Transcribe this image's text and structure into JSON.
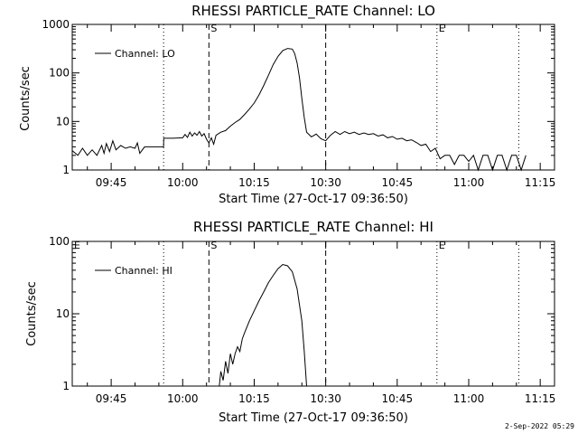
{
  "footer": "2-Sep-2022 05:29",
  "chart_data": [
    {
      "type": "line",
      "title": "RHESSI PARTICLE_RATE Channel: LO",
      "xlabel": "Start Time (27-Oct-17 09:36:50)",
      "ylabel": "Counts/sec",
      "y_scale": "log",
      "ylim": [
        1,
        1000
      ],
      "y_ticks": [
        "1",
        "10",
        "100",
        "1000"
      ],
      "xlim": [
        "09:36:50",
        "11:18:00"
      ],
      "x_ticks": [
        "09:45",
        "10:00",
        "10:15",
        "10:30",
        "10:45",
        "11:00",
        "11:15"
      ],
      "legend": {
        "position": "top-left",
        "entries": [
          "Channel: LO"
        ]
      },
      "markers": [
        {
          "time": "09:56:00",
          "style": "dotted",
          "label": ""
        },
        {
          "time": "10:05:30",
          "style": "dashed",
          "label": "S"
        },
        {
          "time": "10:30:00",
          "style": "dashed",
          "label": ""
        },
        {
          "time": "10:53:20",
          "style": "dotted",
          "label": "E"
        },
        {
          "time": "11:10:30",
          "style": "dotted",
          "label": ""
        }
      ],
      "series": [
        {
          "name": "Channel: LO",
          "points": [
            [
              "09:36:50",
              2.5
            ],
            [
              "09:38:00",
              2.0
            ],
            [
              "09:39:00",
              2.8
            ],
            [
              "09:40:00",
              2.0
            ],
            [
              "09:41:00",
              2.6
            ],
            [
              "09:42:00",
              2.0
            ],
            [
              "09:43:00",
              3.2
            ],
            [
              "09:43:30",
              2.2
            ],
            [
              "09:44:00",
              3.5
            ],
            [
              "09:44:40",
              2.4
            ],
            [
              "09:45:20",
              4.0
            ],
            [
              "09:46:00",
              2.6
            ],
            [
              "09:47:00",
              3.2
            ],
            [
              "09:48:00",
              2.8
            ],
            [
              "09:49:00",
              3.0
            ],
            [
              "09:50:00",
              2.8
            ],
            [
              "09:50:30",
              3.6
            ],
            [
              "09:51:00",
              2.2
            ],
            [
              "09:52:00",
              3.0
            ],
            [
              "09:53:00",
              3.0
            ],
            [
              "09:54:00",
              3.0
            ],
            [
              "09:55:00",
              3.0
            ],
            [
              "09:55:59",
              3.0
            ],
            [
              "09:56:01",
              4.5
            ],
            [
              "09:58:00",
              4.5
            ],
            [
              "10:00:00",
              4.6
            ],
            [
              "10:00:30",
              5.4
            ],
            [
              "10:01:00",
              4.7
            ],
            [
              "10:01:30",
              6.0
            ],
            [
              "10:02:00",
              5.0
            ],
            [
              "10:02:30",
              5.8
            ],
            [
              "10:03:00",
              5.2
            ],
            [
              "10:03:30",
              6.2
            ],
            [
              "10:04:00",
              5.0
            ],
            [
              "10:04:30",
              5.6
            ],
            [
              "10:05:00",
              4.3
            ],
            [
              "10:05:30",
              3.6
            ],
            [
              "10:06:00",
              4.6
            ],
            [
              "10:06:30",
              3.4
            ],
            [
              "10:07:00",
              5.2
            ],
            [
              "10:08:00",
              6.0
            ],
            [
              "10:09:00",
              6.5
            ],
            [
              "10:10:00",
              8.0
            ],
            [
              "10:11:00",
              9.5
            ],
            [
              "10:12:00",
              11.0
            ],
            [
              "10:13:00",
              14.0
            ],
            [
              "10:14:00",
              18.0
            ],
            [
              "10:15:00",
              24.0
            ],
            [
              "10:16:00",
              35.0
            ],
            [
              "10:17:00",
              55.0
            ],
            [
              "10:18:00",
              90.0
            ],
            [
              "10:19:00",
              150.0
            ],
            [
              "10:20:00",
              220.0
            ],
            [
              "10:21:00",
              290.0
            ],
            [
              "10:22:00",
              320.0
            ],
            [
              "10:23:00",
              310.0
            ],
            [
              "10:23:30",
              250.0
            ],
            [
              "10:24:00",
              160.0
            ],
            [
              "10:24:30",
              80.0
            ],
            [
              "10:25:00",
              30.0
            ],
            [
              "10:25:30",
              12.0
            ],
            [
              "10:26:00",
              6.0
            ],
            [
              "10:27:00",
              4.8
            ],
            [
              "10:28:00",
              5.5
            ],
            [
              "10:29:00",
              4.4
            ],
            [
              "10:30:00",
              4.0
            ],
            [
              "10:31:00",
              5.2
            ],
            [
              "10:32:00",
              6.2
            ],
            [
              "10:33:00",
              5.4
            ],
            [
              "10:34:00",
              6.2
            ],
            [
              "10:35:00",
              5.6
            ],
            [
              "10:36:00",
              6.0
            ],
            [
              "10:37:00",
              5.4
            ],
            [
              "10:38:00",
              5.8
            ],
            [
              "10:39:00",
              5.4
            ],
            [
              "10:40:00",
              5.6
            ],
            [
              "10:41:00",
              5.0
            ],
            [
              "10:42:00",
              5.3
            ],
            [
              "10:43:00",
              4.6
            ],
            [
              "10:44:00",
              4.9
            ],
            [
              "10:45:00",
              4.3
            ],
            [
              "10:46:00",
              4.5
            ],
            [
              "10:47:00",
              4.0
            ],
            [
              "10:48:00",
              4.2
            ],
            [
              "10:49:00",
              3.7
            ],
            [
              "10:50:00",
              3.2
            ],
            [
              "10:51:00",
              3.4
            ],
            [
              "10:52:00",
              2.4
            ],
            [
              "10:53:00",
              2.8
            ],
            [
              "10:54:00",
              1.7
            ],
            [
              "10:55:00",
              2.0
            ],
            [
              "10:56:00",
              2.0
            ],
            [
              "10:57:00",
              1.3
            ],
            [
              "10:58:00",
              2.0
            ],
            [
              "10:59:00",
              2.0
            ],
            [
              "11:00:00",
              1.5
            ],
            [
              "11:01:00",
              2.0
            ],
            [
              "11:02:00",
              1.0
            ],
            [
              "11:03:00",
              2.0
            ],
            [
              "11:04:00",
              2.0
            ],
            [
              "11:05:00",
              1.0
            ],
            [
              "11:06:00",
              2.0
            ],
            [
              "11:07:00",
              2.0
            ],
            [
              "11:08:00",
              1.0
            ],
            [
              "11:09:00",
              2.0
            ],
            [
              "11:10:00",
              2.0
            ],
            [
              "11:11:00",
              1.0
            ],
            [
              "11:12:00",
              2.0
            ]
          ]
        }
      ]
    },
    {
      "type": "line",
      "title": "RHESSI PARTICLE_RATE Channel: HI",
      "xlabel": "Start Time (27-Oct-17 09:36:50)",
      "ylabel": "Counts/sec",
      "y_scale": "log",
      "ylim": [
        1,
        100
      ],
      "y_ticks": [
        "1",
        "10",
        "100"
      ],
      "xlim": [
        "09:36:50",
        "11:18:00"
      ],
      "x_ticks": [
        "09:45",
        "10:00",
        "10:15",
        "10:30",
        "10:45",
        "11:00",
        "11:15"
      ],
      "legend": {
        "position": "top-left",
        "entries": [
          "Channel: HI"
        ]
      },
      "markers": [
        {
          "time": "09:36:50",
          "style": "none",
          "label": "E"
        },
        {
          "time": "09:56:00",
          "style": "dotted",
          "label": ""
        },
        {
          "time": "10:05:30",
          "style": "dashed",
          "label": "S"
        },
        {
          "time": "10:30:00",
          "style": "dashed",
          "label": ""
        },
        {
          "time": "10:53:20",
          "style": "dotted",
          "label": "E"
        },
        {
          "time": "11:10:30",
          "style": "dotted",
          "label": ""
        }
      ],
      "series": [
        {
          "name": "Channel: HI",
          "points": [
            [
              "10:07:40",
              1.0
            ],
            [
              "10:08:00",
              1.6
            ],
            [
              "10:08:30",
              1.2
            ],
            [
              "10:09:00",
              2.2
            ],
            [
              "10:09:30",
              1.5
            ],
            [
              "10:10:00",
              2.8
            ],
            [
              "10:10:30",
              2.0
            ],
            [
              "10:11:00",
              2.8
            ],
            [
              "10:11:30",
              3.5
            ],
            [
              "10:12:00",
              3.0
            ],
            [
              "10:12:30",
              4.5
            ],
            [
              "10:13:00",
              5.5
            ],
            [
              "10:14:00",
              8.0
            ],
            [
              "10:15:00",
              11.0
            ],
            [
              "10:16:00",
              15.0
            ],
            [
              "10:17:00",
              20.0
            ],
            [
              "10:18:00",
              27.0
            ],
            [
              "10:19:00",
              34.0
            ],
            [
              "10:20:00",
              42.0
            ],
            [
              "10:21:00",
              48.0
            ],
            [
              "10:22:00",
              46.0
            ],
            [
              "10:23:00",
              38.0
            ],
            [
              "10:24:00",
              22.0
            ],
            [
              "10:25:00",
              8.0
            ],
            [
              "10:25:30",
              3.0
            ],
            [
              "10:26:00",
              1.0
            ]
          ]
        }
      ]
    }
  ]
}
